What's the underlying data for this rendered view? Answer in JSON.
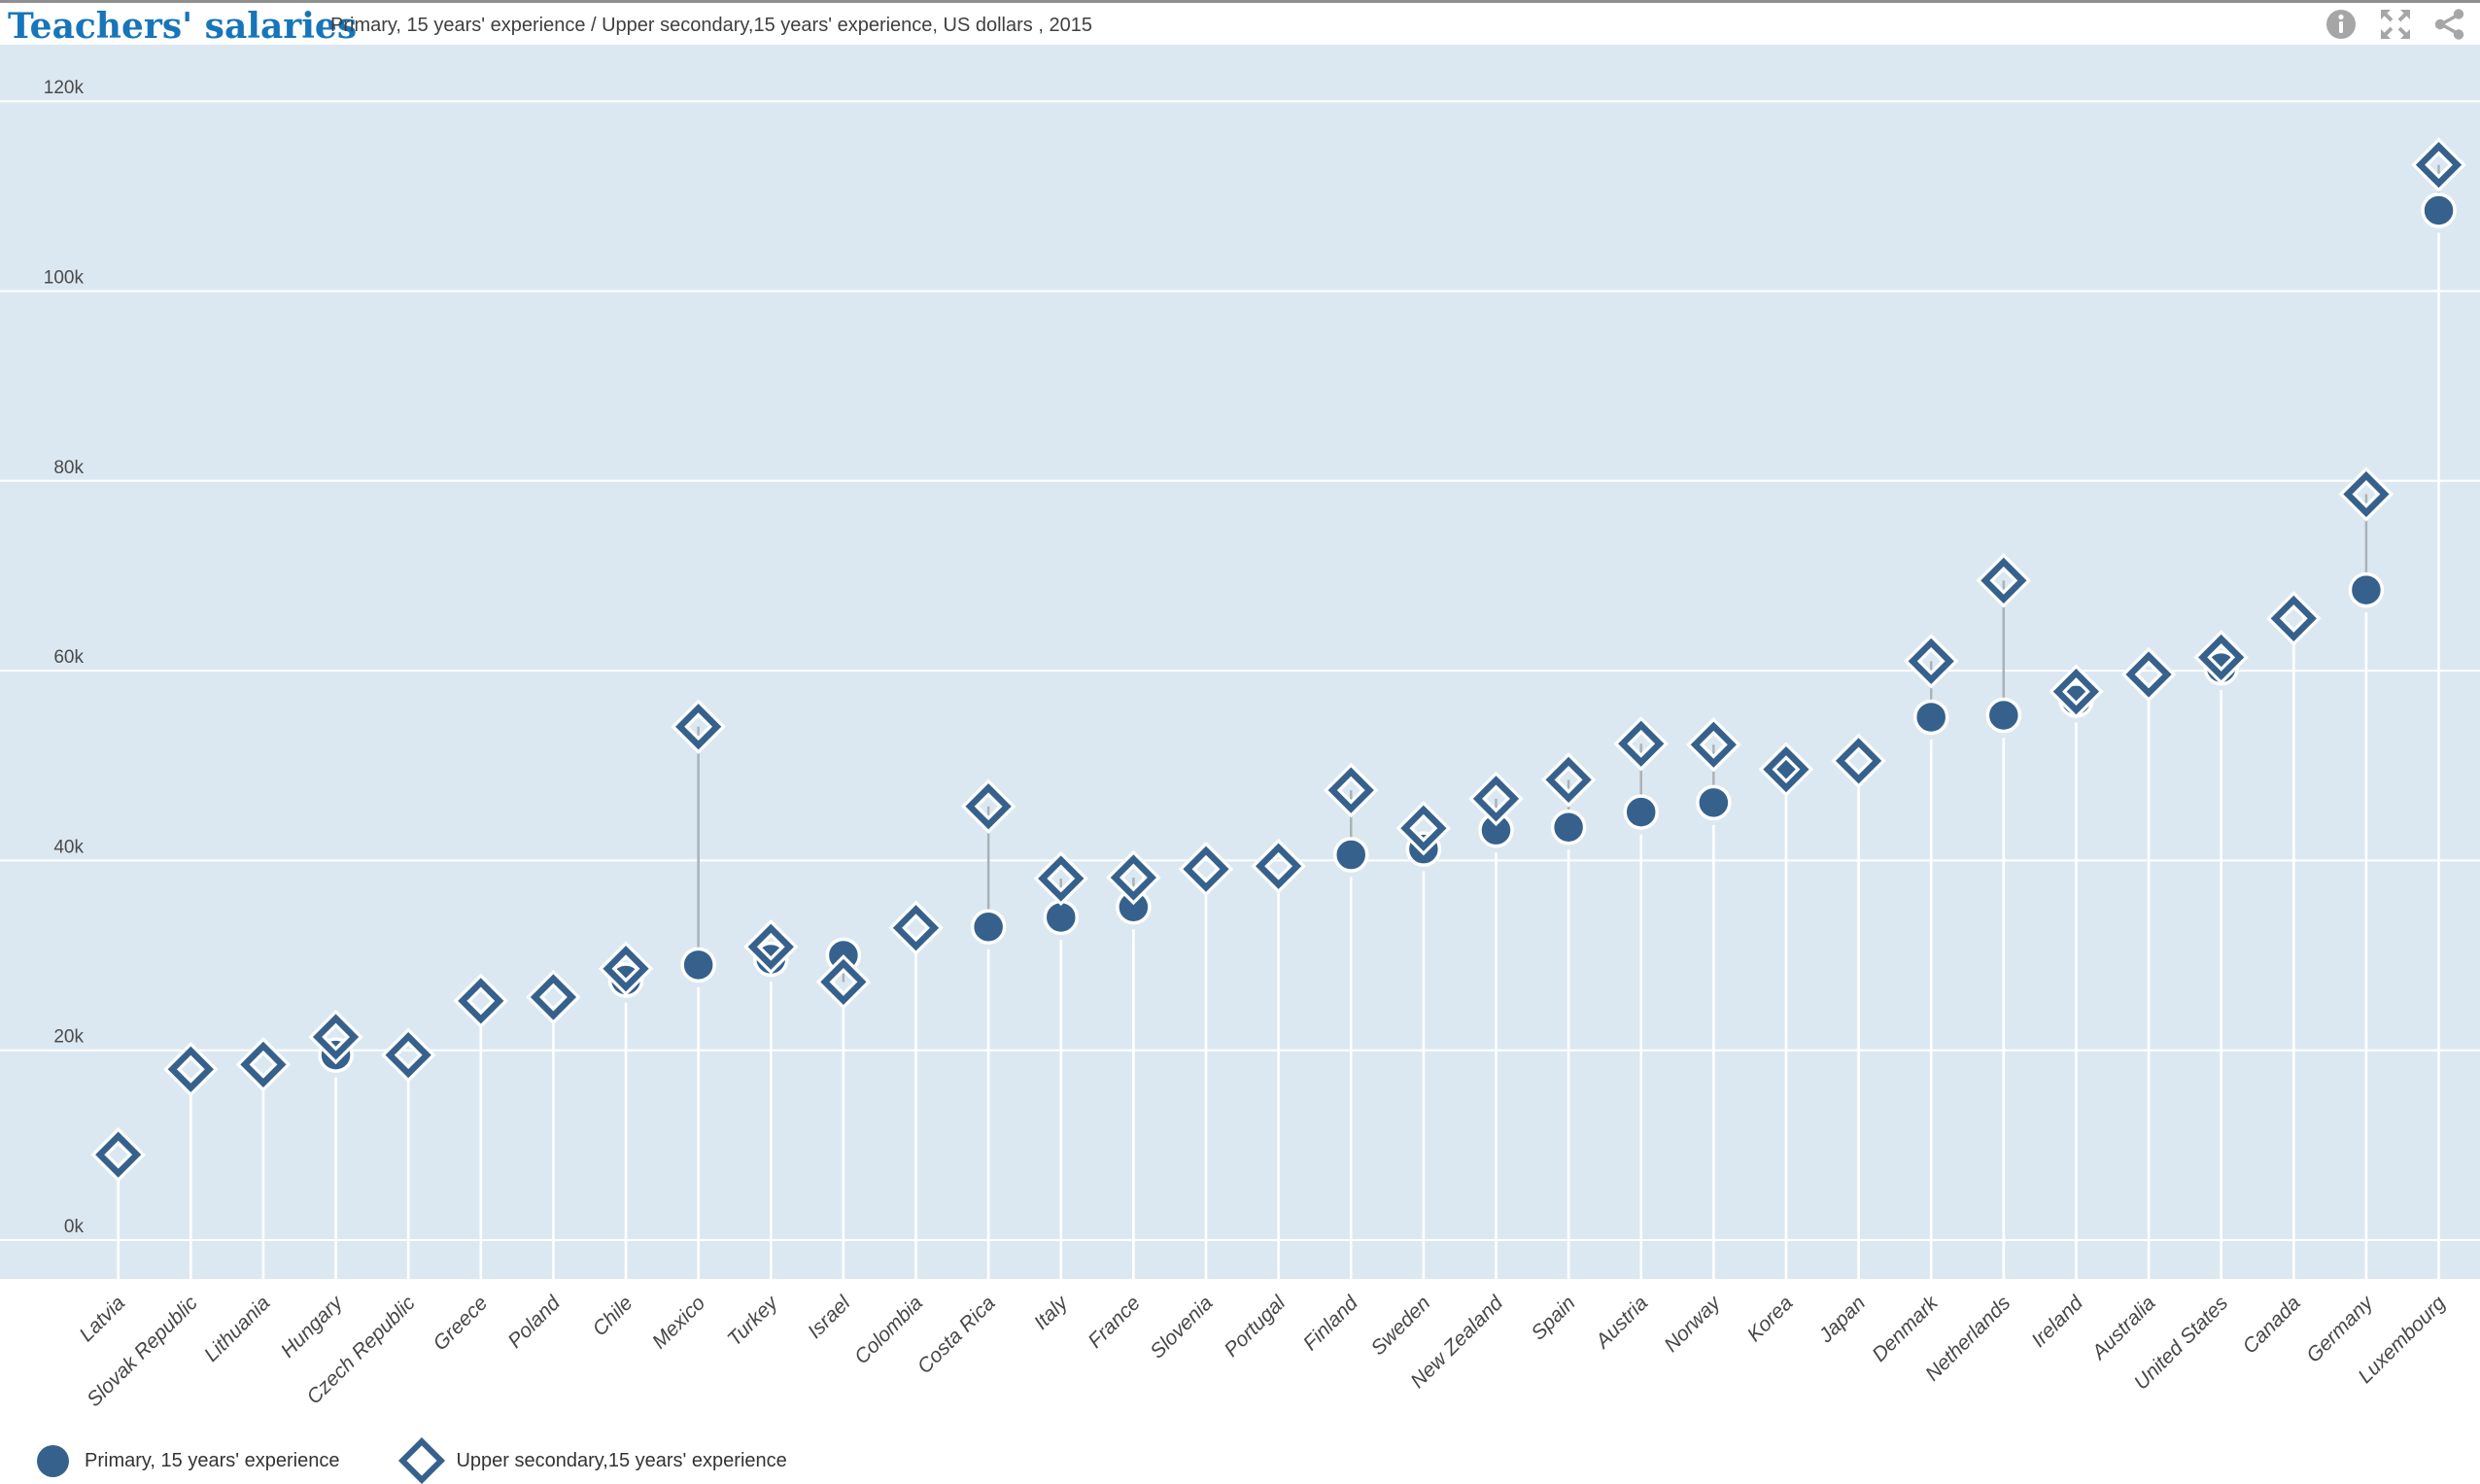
{
  "header": {
    "title": "Teachers' salaries",
    "subtitle": "Primary, 15 years' experience / Upper secondary,15 years' experience, US dollars , 2015"
  },
  "toolbar": {
    "icons": [
      "info-icon",
      "fullscreen-icon",
      "share-icon"
    ],
    "icon_color": "#a6a6a6"
  },
  "legend": {
    "primary_label": "Primary, 15 years' experience",
    "upper_secondary_label": "Upper secondary,15 years' experience"
  },
  "colors": {
    "marker": "#36618c",
    "plot_bg": "#dce8f1",
    "gridline": "#ffffff",
    "stem": "#ffffff",
    "connector": "#a9b2b8",
    "axis_label": "#4a4a4a",
    "tick_label": "#474747",
    "title_blue": "#1775b9"
  },
  "chart_data": {
    "type": "scatter",
    "title": "Teachers' salaries",
    "subtitle": "Primary, 15 years' experience / Upper secondary,15 years' experience, US dollars , 2015",
    "unit": "US dollars (thousands)",
    "year": "2015",
    "ylim": [
      0,
      125
    ],
    "yticks": [
      0,
      20,
      40,
      60,
      80,
      100,
      120
    ],
    "ytick_suffix": "k",
    "grid": "horizontal-white-on-lightblue",
    "legend_position": "bottom-left",
    "categories": [
      "Latvia",
      "Slovak Republic",
      "Lithuania",
      "Hungary",
      "Czech Republic",
      "Greece",
      "Poland",
      "Chile",
      "Mexico",
      "Turkey",
      "Israel",
      "Colombia",
      "Costa Rica",
      "Italy",
      "France",
      "Slovenia",
      "Portugal",
      "Finland",
      "Sweden",
      "New Zealand",
      "Spain",
      "Austria",
      "Norway",
      "Korea",
      "Japan",
      "Denmark",
      "Netherlands",
      "Ireland",
      "Australia",
      "United States",
      "Canada",
      "Germany",
      "Luxembourg"
    ],
    "series": [
      {
        "name": "Primary, 15 years' experience",
        "marker": "circle",
        "values_k": [
          null,
          null,
          null,
          19.5,
          null,
          null,
          null,
          27.4,
          29.0,
          29.6,
          30.0,
          null,
          33.0,
          34.0,
          35.1,
          null,
          null,
          40.6,
          41.2,
          43.2,
          43.5,
          45.1,
          46.1,
          49.9,
          null,
          55.1,
          55.3,
          56.9,
          null,
          60.3,
          null,
          68.5,
          108.5
        ]
      },
      {
        "name": "Upper secondary,15 years' experience",
        "marker": "diamond",
        "values_k": [
          9.0,
          18.0,
          18.5,
          21.4,
          19.5,
          25.2,
          25.6,
          28.6,
          54.1,
          30.9,
          27.2,
          32.9,
          45.7,
          38.1,
          38.2,
          39.1,
          39.4,
          47.4,
          43.4,
          46.5,
          48.5,
          52.3,
          52.2,
          49.6,
          50.5,
          61.0,
          69.5,
          57.8,
          59.6,
          61.4,
          65.5,
          78.6,
          113.3
        ]
      }
    ]
  }
}
